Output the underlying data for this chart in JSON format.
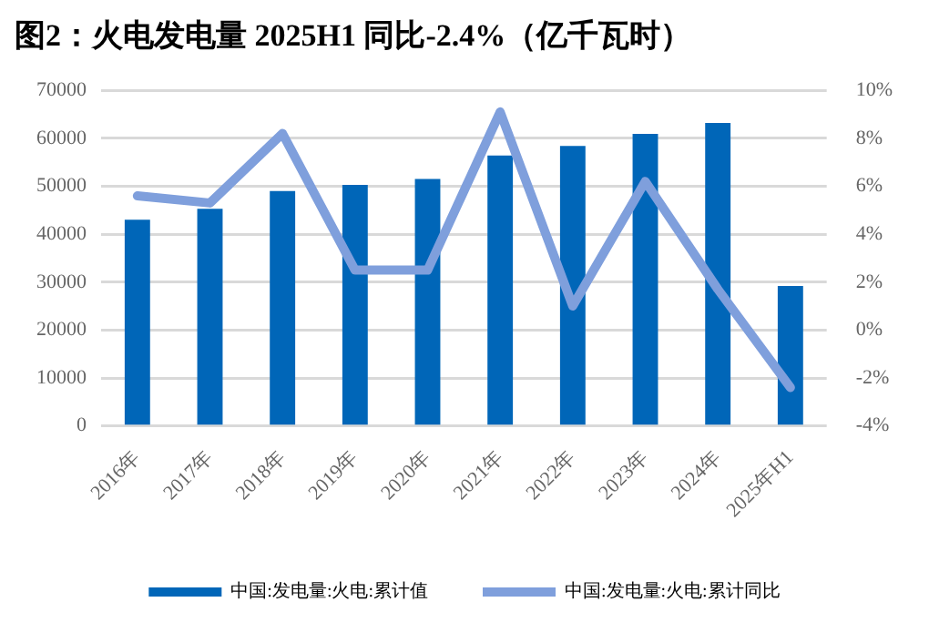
{
  "chart_data": {
    "type": "bar",
    "title": "图2：火电发电量 2025H1 同比-2.4%（亿千瓦时）",
    "categories": [
      "2016年",
      "2017年",
      "2018年",
      "2019年",
      "2020年",
      "2021年",
      "2022年",
      "2023年",
      "2024年",
      "2025年H1"
    ],
    "series": [
      {
        "name": "中国:发电量:火电:累计值",
        "color": "#0066b8",
        "values": [
          43000,
          45300,
          49000,
          50300,
          51500,
          56400,
          58400,
          60900,
          63200,
          29200
        ]
      },
      {
        "name": "中国:发电量:火电:累计同比",
        "type": "line",
        "axis": "y2",
        "color": "#7f9fdc",
        "values": [
          5.6,
          5.3,
          8.2,
          2.5,
          2.5,
          9.1,
          1.0,
          6.2,
          1.7,
          -2.4
        ]
      }
    ],
    "ylim": [
      0,
      70000
    ],
    "yticks": [
      0,
      10000,
      20000,
      30000,
      40000,
      50000,
      60000,
      70000
    ],
    "y2lim": [
      -4,
      10
    ],
    "y2ticks": [
      {
        "value": -4,
        "label": "-4%"
      },
      {
        "value": -2,
        "label": "-2%"
      },
      {
        "value": 0,
        "label": "0%"
      },
      {
        "value": 2,
        "label": "2%"
      },
      {
        "value": 4,
        "label": "4%"
      },
      {
        "value": 6,
        "label": "6%"
      },
      {
        "value": 8,
        "label": "8%"
      },
      {
        "value": 10,
        "label": "10%"
      }
    ],
    "grid": "y",
    "legend": "bottom",
    "marker": "none"
  }
}
